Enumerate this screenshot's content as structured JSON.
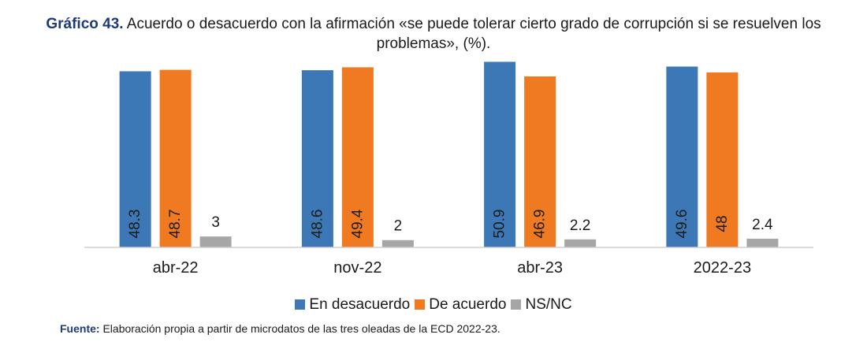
{
  "title": {
    "lead": "Gráfico 43.",
    "text": "Acuerdo o desacuerdo con la afirmación «se puede tolerar cierto grado de corrupción si se resuelven los problemas», (%)."
  },
  "source": {
    "label": "Fuente:",
    "text": "Elaboración propia a partir de microdatos de las tres oleadas de la ECD 2022-23."
  },
  "chart_data": {
    "type": "bar",
    "title": "Acuerdo o desacuerdo con la afirmación «se puede tolerar cierto grado de corrupción si se resuelven los problemas», (%).",
    "categories": [
      "abr-22",
      "nov-22",
      "abr-23",
      "2022-23"
    ],
    "series": [
      {
        "name": "En desacuerdo",
        "color": "#3b78b5",
        "values": [
          48.3,
          48.6,
          50.9,
          49.6
        ],
        "labels": [
          "48.3",
          "48.6",
          "50.9",
          "49.6"
        ],
        "label_style": "inside-vertical"
      },
      {
        "name": "De acuerdo",
        "color": "#f07a22",
        "values": [
          48.7,
          49.4,
          46.9,
          48
        ],
        "labels": [
          "48.7",
          "49.4",
          "46.9",
          "48"
        ],
        "label_style": "inside-vertical"
      },
      {
        "name": "NS/NC",
        "color": "#a6a6a6",
        "values": [
          3,
          2,
          2.2,
          2.4
        ],
        "labels": [
          "3",
          "2",
          "2.2",
          "2.4"
        ],
        "label_style": "above"
      }
    ],
    "ylim": [
      0,
      51
    ],
    "grid": false,
    "legend": "bottom-center",
    "xlabel": "",
    "ylabel": ""
  }
}
